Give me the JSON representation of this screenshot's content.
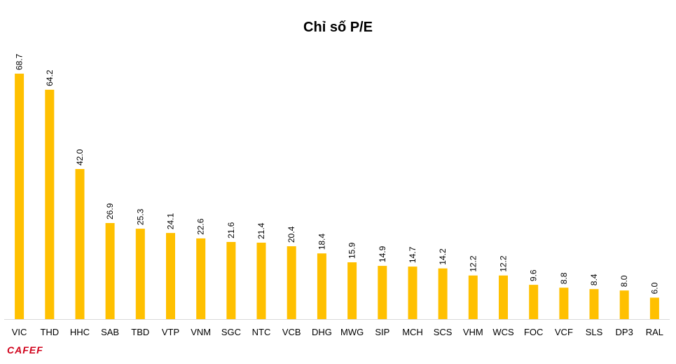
{
  "logo_text": "CAFEF",
  "colors": {
    "bar": "#FFC000",
    "axis": "#d9d9d9",
    "text": "#000000",
    "logo": "#d0021b"
  },
  "chart_data": {
    "type": "bar",
    "title": "Chỉ số P/E",
    "xlabel": "",
    "ylabel": "",
    "grid": false,
    "legend": "none",
    "ylim": [
      0,
      72
    ],
    "categories": [
      "VIC",
      "THD",
      "HHC",
      "SAB",
      "TBD",
      "VTP",
      "VNM",
      "SGC",
      "NTC",
      "VCB",
      "DHG",
      "MWG",
      "SIP",
      "MCH",
      "SCS",
      "VHM",
      "WCS",
      "FOC",
      "VCF",
      "SLS",
      "DP3",
      "RAL"
    ],
    "values": [
      68.7,
      64.2,
      42.0,
      26.9,
      25.3,
      24.1,
      22.6,
      21.6,
      21.4,
      20.4,
      18.4,
      15.9,
      14.9,
      14.7,
      14.2,
      12.2,
      12.2,
      9.6,
      8.8,
      8.4,
      8.0,
      6.0
    ],
    "data_labels": [
      "68.7",
      "64.2",
      "42.0",
      "26.9",
      "25.3",
      "24.1",
      "22.6",
      "21.6",
      "21.4",
      "20.4",
      "18.4",
      "15.9",
      "14.9",
      "14.7",
      "14.2",
      "12.2",
      "12.2",
      "9.6",
      "8.8",
      "8.4",
      "8.0",
      "6.0"
    ]
  }
}
